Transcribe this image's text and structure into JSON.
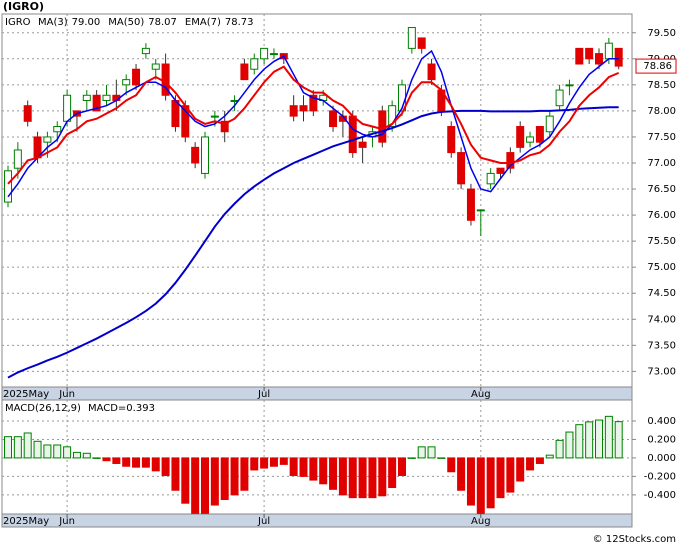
{
  "chart_data": [
    {
      "type": "candlestick",
      "title": "(IGRO)",
      "symbol": "IGRO",
      "categories": [
        "2025May",
        null,
        null,
        null,
        null,
        null,
        "Jun",
        null,
        null,
        null,
        null,
        null,
        null,
        null,
        null,
        null,
        null,
        null,
        null,
        null,
        null,
        null,
        null,
        null,
        null,
        null,
        "Jul",
        null,
        null,
        null,
        null,
        null,
        null,
        null,
        null,
        null,
        null,
        null,
        null,
        null,
        null,
        null,
        null,
        null,
        null,
        null,
        null,
        null,
        "Aug",
        null,
        null,
        null,
        null,
        null,
        null,
        null,
        null,
        null,
        null,
        null,
        null,
        null,
        null
      ],
      "open": [
        76.25,
        76.9,
        78.1,
        77.5,
        77.4,
        77.6,
        77.8,
        78.0,
        78.2,
        78.3,
        78.2,
        78.3,
        78.5,
        78.8,
        79.1,
        78.8,
        78.9,
        78.2,
        78.1,
        77.3,
        76.8,
        77.9,
        77.8,
        78.2,
        78.9,
        78.8,
        79.0,
        79.1,
        79.1,
        78.1,
        78.1,
        78.3,
        78.2,
        78.0,
        77.9,
        77.9,
        77.4,
        77.5,
        78.0,
        77.7,
        78.0,
        79.2,
        79.4,
        78.9,
        78.4,
        77.7,
        77.2,
        76.5,
        76.1,
        76.6,
        76.9,
        77.2,
        77.7,
        77.4,
        77.7,
        77.6,
        78.1,
        78.5,
        79.2,
        79.2,
        79.1,
        79.0,
        79.2
      ],
      "high": [
        76.95,
        77.4,
        78.2,
        77.6,
        77.6,
        77.8,
        78.4,
        78.0,
        78.4,
        78.4,
        78.5,
        78.6,
        78.7,
        78.9,
        79.3,
        79.0,
        79.1,
        78.3,
        78.2,
        77.4,
        77.6,
        78.0,
        78.0,
        78.3,
        79.0,
        79.1,
        79.2,
        79.2,
        79.1,
        78.3,
        78.3,
        78.4,
        78.4,
        78.1,
        78.0,
        78.0,
        77.5,
        77.7,
        78.1,
        78.2,
        78.6,
        79.6,
        79.4,
        79.0,
        78.5,
        77.8,
        77.3,
        76.6,
        76.1,
        76.9,
        76.9,
        77.3,
        77.8,
        77.6,
        77.7,
        78.0,
        78.5,
        78.6,
        79.2,
        79.2,
        79.2,
        79.4,
        79.2
      ],
      "low": [
        76.15,
        76.7,
        77.7,
        77.0,
        77.1,
        77.4,
        77.7,
        77.6,
        78.0,
        78.0,
        78.1,
        78.0,
        78.3,
        78.4,
        79.0,
        78.6,
        78.2,
        77.6,
        77.4,
        76.9,
        76.7,
        77.7,
        77.4,
        78.0,
        78.6,
        78.7,
        78.9,
        79.0,
        78.9,
        77.8,
        77.8,
        77.9,
        78.1,
        77.6,
        77.5,
        77.1,
        77.0,
        77.3,
        77.3,
        77.6,
        77.9,
        79.1,
        79.1,
        78.5,
        77.9,
        77.1,
        76.5,
        75.8,
        75.6,
        76.5,
        76.7,
        76.8,
        77.2,
        77.3,
        77.3,
        77.5,
        78.0,
        78.3,
        78.9,
        78.9,
        78.8,
        78.9,
        78.8
      ],
      "close": [
        76.85,
        77.25,
        77.8,
        77.1,
        77.5,
        77.7,
        78.3,
        77.9,
        78.3,
        78.0,
        78.3,
        78.2,
        78.6,
        78.5,
        79.2,
        78.9,
        78.3,
        77.7,
        77.5,
        77.0,
        77.5,
        77.9,
        77.6,
        78.2,
        78.6,
        79.0,
        79.2,
        79.1,
        79.0,
        77.9,
        78.0,
        78.0,
        78.3,
        77.7,
        77.8,
        77.2,
        77.3,
        77.6,
        77.4,
        78.1,
        78.5,
        79.6,
        79.2,
        78.6,
        78.0,
        77.2,
        76.6,
        75.9,
        76.1,
        76.8,
        76.8,
        76.9,
        77.3,
        77.5,
        77.4,
        77.9,
        78.4,
        78.5,
        78.9,
        79.0,
        78.9,
        79.3,
        78.86
      ],
      "up_color": "#008000",
      "down_color": "#e00000",
      "lines": [
        {
          "name": "MA(3)",
          "legend_value": "79.00",
          "color": "#0000ee",
          "width": 1.5,
          "values": [
            76.35,
            76.6,
            76.9,
            77.1,
            77.3,
            77.45,
            77.8,
            77.95,
            78.0,
            78.05,
            78.1,
            78.2,
            78.35,
            78.45,
            78.55,
            78.55,
            78.45,
            78.2,
            78.0,
            77.8,
            77.7,
            77.75,
            77.9,
            78.1,
            78.35,
            78.6,
            78.8,
            78.95,
            79.05,
            78.7,
            78.35,
            78.25,
            78.2,
            78.05,
            77.9,
            77.65,
            77.55,
            77.5,
            77.55,
            77.75,
            78.05,
            78.6,
            79.0,
            79.15,
            78.75,
            78.1,
            77.5,
            76.9,
            76.5,
            76.45,
            76.7,
            76.95,
            77.1,
            77.25,
            77.35,
            77.5,
            77.8,
            78.15,
            78.45,
            78.7,
            78.85,
            79.0,
            79.0
          ]
        },
        {
          "name": "MA(50)",
          "legend_value": "78.07",
          "color": "#0000cc",
          "width": 2,
          "values": [
            72.88,
            72.98,
            73.06,
            73.13,
            73.21,
            73.28,
            73.36,
            73.45,
            73.54,
            73.63,
            73.73,
            73.83,
            73.93,
            74.04,
            74.16,
            74.3,
            74.48,
            74.7,
            74.95,
            75.22,
            75.5,
            75.78,
            76.02,
            76.22,
            76.4,
            76.55,
            76.68,
            76.8,
            76.9,
            77.0,
            77.08,
            77.16,
            77.24,
            77.32,
            77.38,
            77.44,
            77.5,
            77.56,
            77.61,
            77.67,
            77.74,
            77.82,
            77.9,
            77.95,
            77.98,
            77.99,
            78.0,
            78.0,
            78.0,
            77.99,
            77.99,
            77.99,
            77.99,
            77.99,
            78.0,
            78.0,
            78.01,
            78.02,
            78.04,
            78.05,
            78.06,
            78.07,
            78.07
          ]
        },
        {
          "name": "EMA(7)",
          "legend_value": "78.73",
          "color": "#ee0000",
          "width": 2,
          "values": [
            76.6,
            76.8,
            77.05,
            77.1,
            77.2,
            77.3,
            77.55,
            77.65,
            77.8,
            77.85,
            77.95,
            78.05,
            78.2,
            78.3,
            78.55,
            78.65,
            78.55,
            78.35,
            78.1,
            77.85,
            77.75,
            77.8,
            77.75,
            77.85,
            78.05,
            78.3,
            78.55,
            78.75,
            78.85,
            78.6,
            78.45,
            78.35,
            78.35,
            78.2,
            78.1,
            77.9,
            77.75,
            77.7,
            77.65,
            77.75,
            77.95,
            78.35,
            78.55,
            78.55,
            78.4,
            78.1,
            77.75,
            77.35,
            77.1,
            77.05,
            77.0,
            77.0,
            77.05,
            77.15,
            77.2,
            77.35,
            77.6,
            77.8,
            78.1,
            78.3,
            78.45,
            78.65,
            78.73
          ]
        }
      ],
      "ylim": [
        72.7,
        79.86
      ],
      "yticks": [
        {
          "value": 73,
          "label": "73.00"
        },
        {
          "value": 73.5,
          "label": "73.50"
        },
        {
          "value": 74,
          "label": "74.00"
        },
        {
          "value": 74.5,
          "label": "74.50"
        },
        {
          "value": 75,
          "label": "75.00"
        },
        {
          "value": 75.5,
          "label": "75.50"
        },
        {
          "value": 76,
          "label": "76.00"
        },
        {
          "value": 76.5,
          "label": "76.50"
        },
        {
          "value": 77,
          "label": "77.00"
        },
        {
          "value": 77.5,
          "label": "77.50"
        },
        {
          "value": 78,
          "label": "78.00"
        },
        {
          "value": 78.5,
          "label": "78.50"
        },
        {
          "value": 79,
          "label": "79.00"
        },
        {
          "value": 79.5,
          "label": "79.50"
        }
      ],
      "grid": true
    },
    {
      "type": "bar",
      "name": "MACD(26,12,9)",
      "legend_text": "MACD=0.393",
      "categories": [
        "2025May",
        null,
        null,
        null,
        null,
        null,
        "Jun",
        null,
        null,
        null,
        null,
        null,
        null,
        null,
        null,
        null,
        null,
        null,
        null,
        null,
        null,
        null,
        null,
        null,
        null,
        null,
        "Jul",
        null,
        null,
        null,
        null,
        null,
        null,
        null,
        null,
        null,
        null,
        null,
        null,
        null,
        null,
        null,
        null,
        null,
        null,
        null,
        null,
        null,
        "Aug",
        null,
        null,
        null,
        null,
        null,
        null,
        null,
        null,
        null,
        null,
        null,
        null,
        null,
        null
      ],
      "values": [
        0.23,
        0.23,
        0.27,
        0.18,
        0.14,
        0.14,
        0.12,
        0.06,
        0.05,
        0.0,
        -0.03,
        -0.06,
        -0.09,
        -0.1,
        -0.1,
        -0.14,
        -0.19,
        -0.35,
        -0.49,
        -0.6,
        -0.6,
        -0.51,
        -0.45,
        -0.4,
        -0.35,
        -0.13,
        -0.11,
        -0.09,
        -0.07,
        -0.19,
        -0.2,
        -0.24,
        -0.28,
        -0.34,
        -0.4,
        -0.43,
        -0.43,
        -0.43,
        -0.41,
        -0.32,
        -0.19,
        0.0,
        0.12,
        0.12,
        0.0,
        -0.15,
        -0.35,
        -0.51,
        -0.6,
        -0.54,
        -0.43,
        -0.37,
        -0.25,
        -0.13,
        -0.06,
        0.03,
        0.19,
        0.28,
        0.36,
        0.39,
        0.41,
        0.45,
        0.393
      ],
      "up_color": "#008000",
      "down_color": "#e00000",
      "ylim": [
        -0.607,
        0.627
      ],
      "yticks": [
        {
          "value": -0.4,
          "label": "-0.400"
        },
        {
          "value": -0.2,
          "label": "-0.200"
        },
        {
          "value": 0,
          "label": "0.000"
        },
        {
          "value": 0.2,
          "label": "0.200"
        },
        {
          "value": 0.4,
          "label": "0.400"
        }
      ],
      "grid": true
    }
  ],
  "footer": "© 12Stocks.com"
}
